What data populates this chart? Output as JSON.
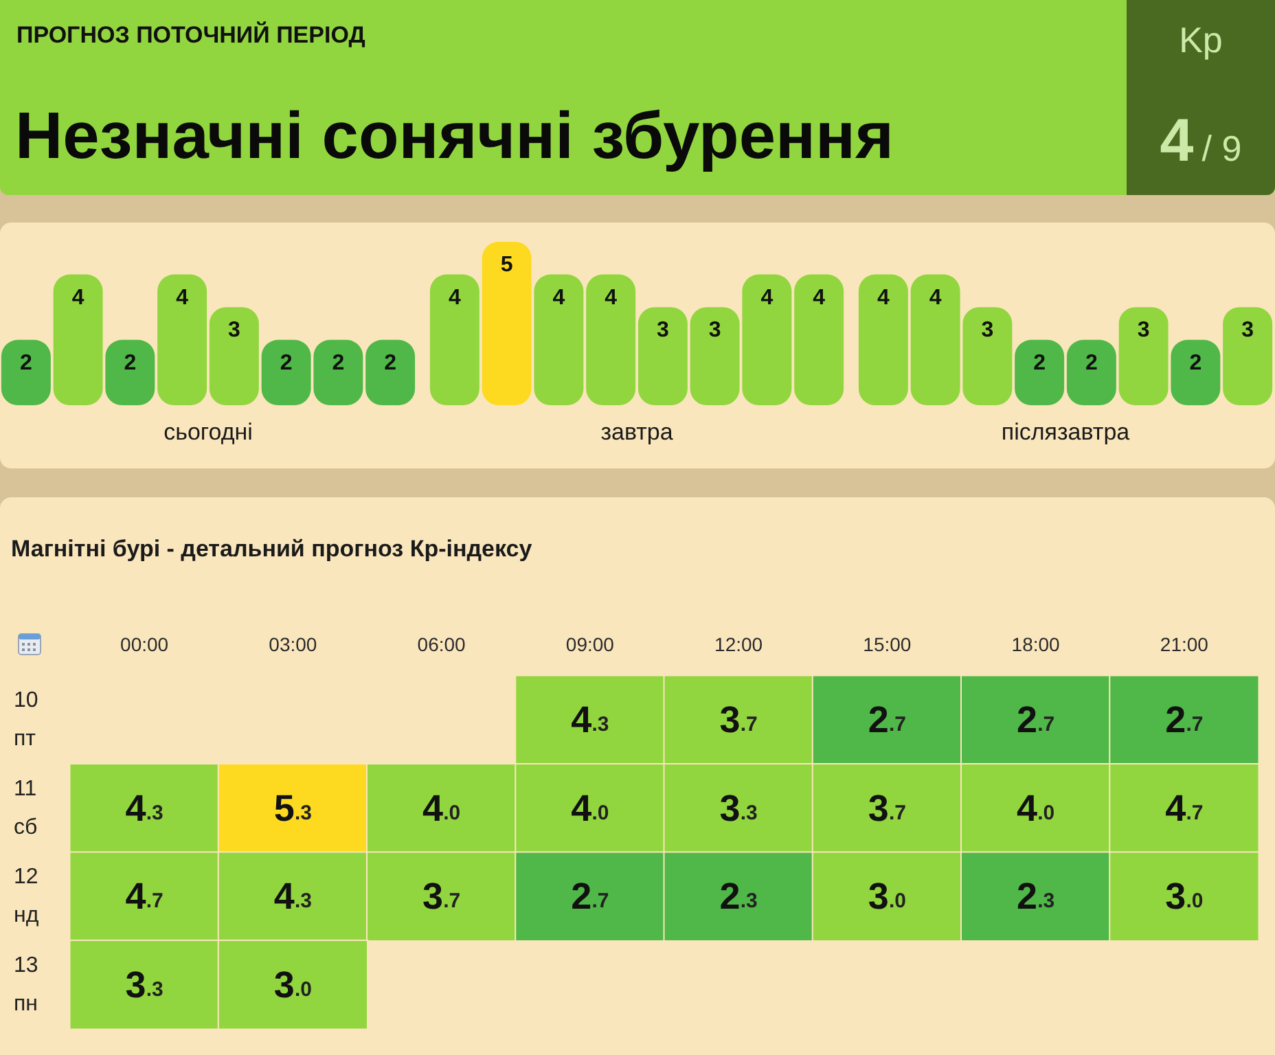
{
  "chart_data": [
    {
      "type": "other",
      "title": "ПРОГНОЗ ПОТОЧНИЙ ПЕРІОД",
      "subtitle": "Незначні сонячні збурення",
      "annotations": [
        "Kp",
        "4",
        "/ 9"
      ]
    },
    {
      "type": "bar",
      "categories": [
        null,
        null,
        null,
        null,
        null,
        null,
        null,
        null
      ],
      "values": [
        2,
        4,
        2,
        4,
        3,
        2,
        2,
        2
      ],
      "colors": [
        "#50b848",
        "#92d63f",
        "#50b848",
        "#92d63f",
        "#92d63f",
        "#50b848",
        "#50b848",
        "#50b848"
      ],
      "xlabel": "сьогодні",
      "data_labels": true,
      "tick_labels": false
    },
    {
      "type": "bar",
      "categories": [
        null,
        null,
        null,
        null,
        null,
        null,
        null,
        null
      ],
      "values": [
        4,
        5,
        4,
        4,
        3,
        3,
        4,
        4
      ],
      "colors": [
        "#92d63f",
        "#fdda20",
        "#92d63f",
        "#92d63f",
        "#92d63f",
        "#92d63f",
        "#92d63f",
        "#92d63f"
      ],
      "xlabel": "завтра",
      "data_labels": true,
      "tick_labels": false
    },
    {
      "type": "bar",
      "categories": [
        null,
        null,
        null,
        null,
        null,
        null,
        null,
        null
      ],
      "values": [
        4,
        4,
        3,
        2,
        2,
        3,
        2,
        3
      ],
      "colors": [
        "#92d63f",
        "#92d63f",
        "#92d63f",
        "#50b848",
        "#50b848",
        "#92d63f",
        "#50b848",
        "#92d63f"
      ],
      "xlabel": "післязавтра",
      "data_labels": true,
      "tick_labels": false
    },
    {
      "type": "heatmap",
      "title": "Магнітні бурі - детальний прогноз Кр-індексу",
      "categories": [
        "00:00",
        "03:00",
        "06:00",
        "09:00",
        "12:00",
        "15:00",
        "18:00",
        "21:00"
      ],
      "y_categories": [
        "10 пт",
        "11 сб",
        "12 нд",
        "13 пн"
      ],
      "cells": [
        [
          null,
          null,
          null,
          4.3,
          3.7,
          2.7,
          2.7,
          2.7
        ],
        [
          4.3,
          5.3,
          4.0,
          4.0,
          3.3,
          3.7,
          4.0,
          4.7
        ],
        [
          4.7,
          4.3,
          3.7,
          2.7,
          2.3,
          3.0,
          2.3,
          3.0
        ],
        [
          3.3,
          3.0,
          null,
          null,
          null,
          null,
          null,
          null
        ]
      ],
      "cell_labels": [
        [
          null,
          null,
          null,
          "4.3",
          "3.7",
          "2.7",
          "2.7",
          "2.7"
        ],
        [
          "4.3",
          "5.3",
          "4.0",
          "4.0",
          "3.3",
          "3.7",
          "4.0",
          "4.7"
        ],
        [
          "4.7",
          "4.3",
          "3.7",
          "2.7",
          "2.3",
          "3.0",
          "2.3",
          "3.0"
        ],
        [
          "3.3",
          "3.0",
          null,
          null,
          null,
          null,
          null,
          null
        ]
      ],
      "colors": [
        [
          null,
          null,
          null,
          "#92d63f",
          "#92d63f",
          "#50b848",
          "#50b848",
          "#50b848"
        ],
        [
          "#92d63f",
          "#fdda20",
          "#92d63f",
          "#92d63f",
          "#92d63f",
          "#92d63f",
          "#92d63f",
          "#92d63f"
        ],
        [
          "#92d63f",
          "#92d63f",
          "#92d63f",
          "#50b848",
          "#50b848",
          "#92d63f",
          "#50b848",
          "#92d63f"
        ],
        [
          "#92d63f",
          "#92d63f",
          null,
          null,
          null,
          null,
          null,
          null
        ]
      ]
    }
  ]
}
